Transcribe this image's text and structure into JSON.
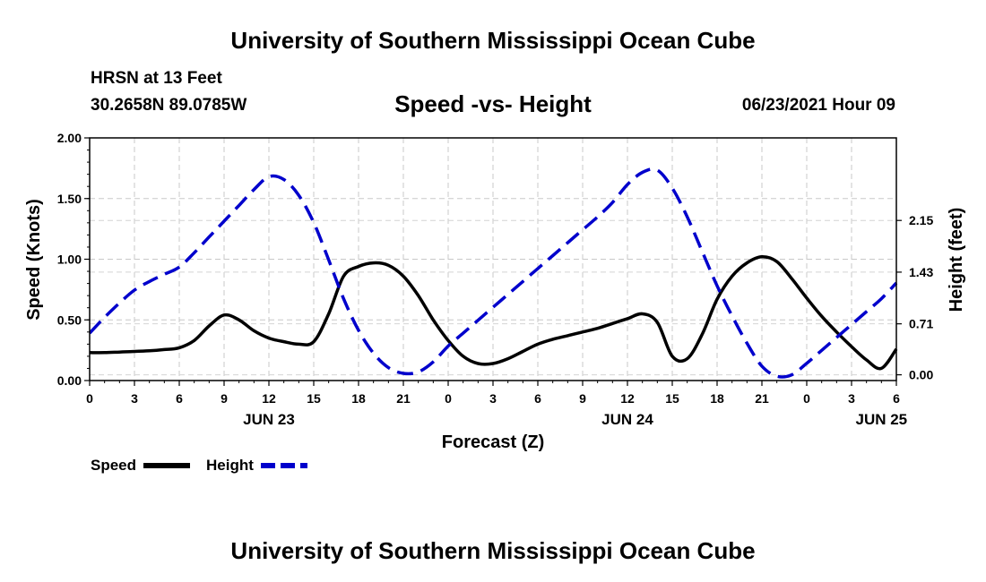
{
  "header": {
    "title": "University of Southern Mississippi Ocean Cube",
    "station": "HRSN at 13 Feet",
    "coords": "30.2658N  89.0785W",
    "subtitle": "Speed -vs- Height",
    "datetime": "06/23/2021 Hour 09"
  },
  "footer": {
    "title": "University of Southern Mississippi Ocean Cube"
  },
  "chart_data": {
    "type": "line",
    "xlabel": "Forecast (Z)",
    "ylabel_left": "Speed (Knots)",
    "ylabel_right": "Height (feet)",
    "x_range": [
      0,
      54
    ],
    "x_unit": "hours from JUN 23 00Z",
    "x_ticks": [
      0,
      3,
      6,
      9,
      12,
      15,
      18,
      21,
      24,
      27,
      30,
      33,
      36,
      39,
      42,
      45,
      48,
      51,
      54
    ],
    "x_tick_labels": [
      "0",
      "3",
      "6",
      "9",
      "12",
      "15",
      "18",
      "21",
      "0",
      "3",
      "6",
      "9",
      "12",
      "15",
      "18",
      "21",
      "0",
      "3",
      "6"
    ],
    "date_labels": [
      {
        "x": 12,
        "label": "JUN 23"
      },
      {
        "x": 36,
        "label": "JUN 24"
      },
      {
        "x": 53,
        "label": "JUN 25"
      }
    ],
    "ylim_left": [
      0,
      2
    ],
    "y_ticks_left": [
      0,
      0.5,
      1,
      1.5,
      2
    ],
    "y_tick_labels_left": [
      "0.00",
      "0.50",
      "1.00",
      "1.50",
      "2.00"
    ],
    "ylim_right": [
      -0.08,
      3.3
    ],
    "y_ticks_right": [
      0,
      0.71,
      1.43,
      2.15
    ],
    "y_tick_labels_right": [
      "0.00",
      "0.71",
      "1.43",
      "2.15"
    ],
    "grid": true,
    "legend_position": "bottom-left",
    "series": [
      {
        "name": "Speed",
        "axis": "left",
        "style": "solid",
        "color": "#000000",
        "x": [
          0,
          1,
          2,
          3,
          4,
          5,
          6,
          7,
          8,
          9,
          10,
          11,
          12,
          13,
          14,
          15,
          16,
          17,
          18,
          19,
          20,
          21,
          22,
          23,
          24,
          25,
          26,
          27,
          28,
          29,
          30,
          31,
          32,
          33,
          34,
          35,
          36,
          37,
          38,
          39,
          40,
          41,
          42,
          43,
          44,
          45,
          46,
          47,
          48,
          49,
          50,
          51,
          52,
          53,
          54
        ],
        "values": [
          0.23,
          0.23,
          0.235,
          0.24,
          0.245,
          0.255,
          0.27,
          0.33,
          0.45,
          0.54,
          0.5,
          0.41,
          0.35,
          0.32,
          0.3,
          0.32,
          0.55,
          0.86,
          0.94,
          0.97,
          0.95,
          0.86,
          0.7,
          0.5,
          0.33,
          0.2,
          0.14,
          0.14,
          0.18,
          0.24,
          0.3,
          0.34,
          0.37,
          0.4,
          0.43,
          0.47,
          0.51,
          0.55,
          0.48,
          0.2,
          0.18,
          0.38,
          0.67,
          0.86,
          0.97,
          1.02,
          0.98,
          0.84,
          0.68,
          0.53,
          0.4,
          0.28,
          0.17,
          0.1,
          0.26
        ]
      },
      {
        "name": "Height",
        "axis": "right",
        "style": "dashed",
        "color": "#0000cc",
        "x": [
          0,
          1,
          2,
          3,
          4,
          5,
          6,
          7,
          8,
          9,
          10,
          11,
          12,
          13,
          14,
          15,
          16,
          17,
          18,
          19,
          20,
          21,
          22,
          23,
          24,
          25,
          26,
          27,
          28,
          29,
          30,
          31,
          32,
          33,
          34,
          35,
          36,
          37,
          38,
          39,
          40,
          41,
          42,
          43,
          44,
          45,
          46,
          47,
          48,
          49,
          50,
          51,
          52,
          53,
          54
        ],
        "values": [
          0.58,
          0.8,
          1.0,
          1.18,
          1.3,
          1.4,
          1.5,
          1.7,
          1.92,
          2.14,
          2.36,
          2.58,
          2.76,
          2.72,
          2.5,
          2.12,
          1.6,
          1.06,
          0.62,
          0.3,
          0.1,
          0.02,
          0.04,
          0.18,
          0.4,
          0.58,
          0.76,
          0.94,
          1.12,
          1.3,
          1.48,
          1.66,
          1.84,
          2.02,
          2.2,
          2.4,
          2.65,
          2.82,
          2.85,
          2.6,
          2.2,
          1.72,
          1.24,
          0.82,
          0.44,
          0.12,
          -0.02,
          0.0,
          0.16,
          0.34,
          0.52,
          0.7,
          0.88,
          1.06,
          1.28
        ]
      }
    ]
  }
}
